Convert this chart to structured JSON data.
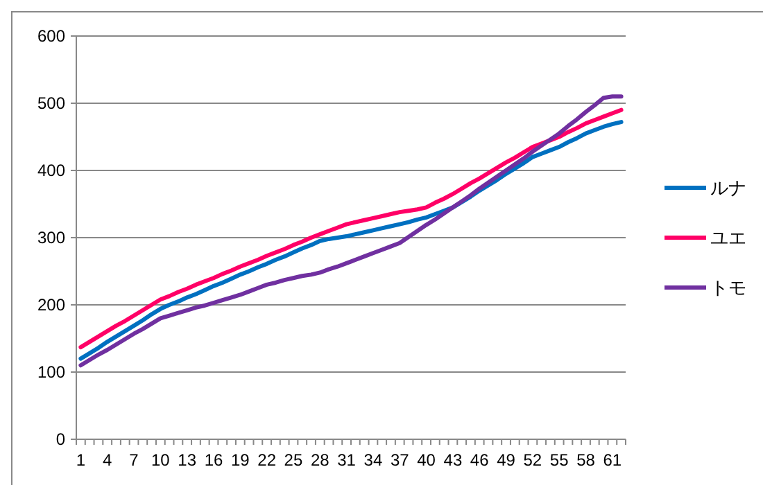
{
  "chart_data": {
    "type": "line",
    "categories": [
      "1",
      null,
      null,
      "4",
      null,
      null,
      "7",
      null,
      null,
      "10",
      null,
      null,
      "13",
      null,
      null,
      "16",
      null,
      null,
      "19",
      null,
      null,
      "22",
      null,
      null,
      "25",
      null,
      null,
      "28",
      null,
      null,
      "31",
      null,
      null,
      "34",
      null,
      null,
      "37",
      null,
      null,
      "40",
      null,
      null,
      "43",
      null,
      null,
      "46",
      null,
      null,
      "49",
      null,
      null,
      "52",
      null,
      null,
      "55",
      null,
      null,
      "58",
      null,
      null,
      "61",
      null
    ],
    "series": [
      {
        "name": "ルナ",
        "color": "#0070c0",
        "values": [
          120,
          128,
          136,
          145,
          153,
          161,
          169,
          177,
          186,
          194,
          200,
          205,
          211,
          216,
          222,
          228,
          233,
          239,
          245,
          250,
          256,
          261,
          267,
          272,
          278,
          284,
          289,
          295,
          298,
          300,
          302,
          305,
          308,
          311,
          314,
          317,
          320,
          323,
          327,
          330,
          335,
          340,
          345,
          353,
          361,
          370,
          378,
          386,
          395,
          403,
          411,
          420,
          425,
          430,
          435,
          442,
          448,
          455,
          460,
          465,
          469,
          472
        ]
      },
      {
        "name": "ユエ",
        "color": "#ff0066",
        "values": [
          137,
          145,
          153,
          161,
          169,
          176,
          184,
          192,
          200,
          208,
          213,
          219,
          224,
          230,
          235,
          240,
          246,
          251,
          257,
          262,
          267,
          273,
          278,
          283,
          289,
          294,
          300,
          305,
          310,
          315,
          320,
          323,
          326,
          329,
          332,
          335,
          338,
          340,
          342,
          345,
          352,
          358,
          365,
          373,
          381,
          388,
          396,
          404,
          412,
          419,
          427,
          435,
          440,
          445,
          450,
          457,
          463,
          470,
          475,
          480,
          485,
          490
        ]
      },
      {
        "name": "トモ",
        "color": "#7030a0",
        "values": [
          110,
          118,
          126,
          133,
          141,
          149,
          157,
          164,
          172,
          180,
          184,
          188,
          192,
          196,
          199,
          203,
          207,
          211,
          215,
          220,
          225,
          230,
          233,
          237,
          240,
          243,
          245,
          248,
          253,
          257,
          262,
          267,
          272,
          277,
          282,
          287,
          292,
          301,
          310,
          319,
          327,
          336,
          345,
          354,
          363,
          373,
          382,
          391,
          400,
          409,
          418,
          428,
          437,
          446,
          455,
          466,
          476,
          487,
          497,
          508,
          510,
          510
        ]
      }
    ],
    "ylim": [
      0,
      600
    ],
    "yticks": [
      0,
      100,
      200,
      300,
      400,
      500,
      600
    ],
    "grid": "y",
    "legend": "right"
  }
}
